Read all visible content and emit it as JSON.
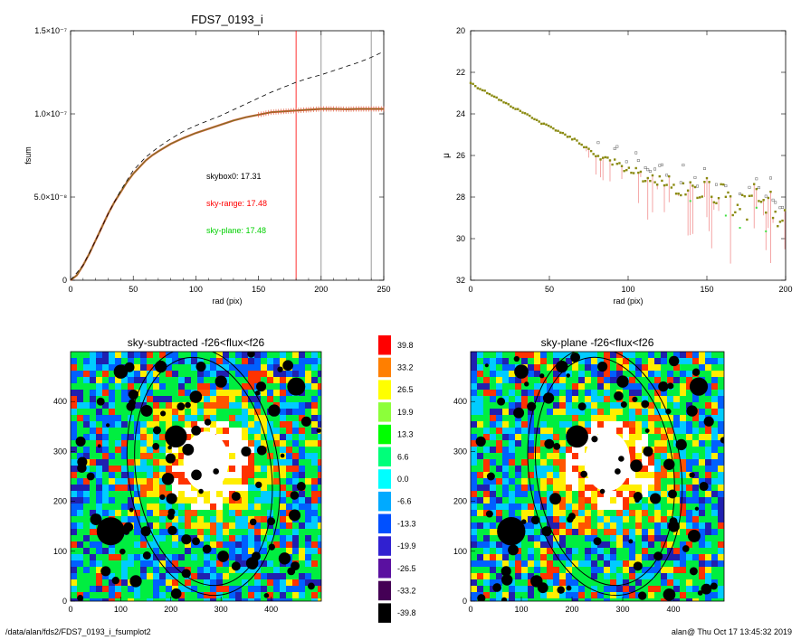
{
  "chart_data": [
    {
      "type": "line",
      "title": "FDS7_0193_i",
      "xlabel": "rad (pix)",
      "ylabel": "fsum",
      "xlim": [
        0,
        250
      ],
      "ylim": [
        0,
        1.5e-07
      ],
      "xticks": [
        "0",
        "50",
        "100",
        "150",
        "200",
        "250"
      ],
      "yticks": [
        "0",
        "5.0×10⁻⁸",
        "1.0×10⁻⁷",
        "1.5×10⁻⁷"
      ],
      "ytick_values": [
        0,
        5e-08,
        1e-07,
        1.5e-07
      ],
      "vlines": [
        180,
        200,
        240
      ],
      "annotations": [
        {
          "text": "skybox0: 17.31",
          "color": "#000000"
        },
        {
          "text": "sky-range: 17.48",
          "color": "#ff0000"
        },
        {
          "text": "sky-plane: 17.48",
          "color": "#00d000"
        }
      ],
      "series": [
        {
          "style": "solid",
          "x": [
            0,
            5,
            10,
            15,
            20,
            25,
            30,
            35,
            40,
            45,
            50,
            55,
            60,
            65,
            70,
            80,
            90,
            100,
            110,
            120,
            130,
            140,
            150,
            160,
            170,
            180,
            190,
            200,
            210,
            220,
            230,
            240,
            250
          ],
          "y": [
            0,
            3e-09,
            9e-09,
            1.6e-08,
            2.4e-08,
            3.2e-08,
            4e-08,
            4.7e-08,
            5.3e-08,
            5.9e-08,
            6.4e-08,
            6.8e-08,
            7.2e-08,
            7.5e-08,
            7.75e-08,
            8.2e-08,
            8.55e-08,
            8.85e-08,
            9.1e-08,
            9.35e-08,
            9.6e-08,
            9.8e-08,
            9.95e-08,
            1.01e-07,
            1.015e-07,
            1.02e-07,
            1.025e-07,
            1.03e-07,
            1.03e-07,
            1.028e-07,
            1.03e-07,
            1.03e-07,
            1.03e-07
          ]
        },
        {
          "style": "dashed",
          "x": [
            0,
            10,
            20,
            30,
            40,
            50,
            60,
            70,
            80,
            90,
            100,
            110,
            120,
            130,
            140,
            150,
            160,
            170,
            180,
            190,
            200,
            210,
            220,
            230,
            240,
            250
          ],
          "y": [
            0,
            9e-09,
            2.4e-08,
            4e-08,
            5.4e-08,
            6.6e-08,
            7.4e-08,
            8e-08,
            8.5e-08,
            8.95e-08,
            9.3e-08,
            9.6e-08,
            9.9e-08,
            1.025e-07,
            1.06e-07,
            1.095e-07,
            1.13e-07,
            1.16e-07,
            1.19e-07,
            1.215e-07,
            1.235e-07,
            1.26e-07,
            1.285e-07,
            1.31e-07,
            1.34e-07,
            1.375e-07
          ]
        }
      ]
    },
    {
      "type": "scatter",
      "title": "",
      "xlabel": "rad (pix)",
      "ylabel": "μ",
      "xlim": [
        0,
        200
      ],
      "ylim": [
        32,
        20
      ],
      "xticks": [
        "0",
        "50",
        "100",
        "150",
        "200"
      ],
      "yticks": [
        "20",
        "22",
        "24",
        "26",
        "28",
        "30",
        "32"
      ],
      "series": [
        {
          "marker": "point",
          "x": [
            0,
            5,
            10,
            15,
            20,
            25,
            30,
            35,
            40,
            45,
            50,
            55,
            60,
            65,
            70,
            75,
            80,
            85,
            90,
            95,
            100,
            105,
            110,
            115,
            120,
            125,
            130,
            135,
            140,
            145,
            150,
            155,
            160,
            165,
            170,
            175,
            180,
            185,
            190,
            195,
            200
          ],
          "y": [
            22.5,
            22.75,
            22.95,
            23.15,
            23.4,
            23.6,
            23.8,
            24.0,
            24.2,
            24.45,
            24.6,
            24.8,
            25.0,
            25.2,
            25.5,
            25.8,
            26.0,
            26.1,
            26.3,
            26.5,
            26.7,
            26.8,
            27.0,
            27.2,
            27.1,
            27.3,
            27.5,
            27.6,
            27.2,
            27.8,
            27.5,
            28.2,
            27.3,
            28.5,
            28.0,
            28.6,
            27.8,
            28.9,
            28.2,
            29.2,
            28.5
          ]
        }
      ]
    },
    {
      "type": "heatmap",
      "title": "sky-subtracted -f26<flux<f26",
      "xlim": [
        0,
        500
      ],
      "ylim": [
        0,
        500
      ],
      "xticks": [
        "0",
        "100",
        "200",
        "300",
        "400"
      ],
      "yticks": [
        "0",
        "100",
        "200",
        "300",
        "400"
      ]
    },
    {
      "type": "heatmap",
      "title": "sky-plane -f26<flux<f26",
      "xlim": [
        0,
        500
      ],
      "ylim": [
        0,
        500
      ],
      "xticks": [
        "0",
        "100",
        "200",
        "300",
        "400"
      ],
      "yticks": [
        "0",
        "100",
        "200",
        "300",
        "400"
      ]
    }
  ],
  "colorbar": {
    "labels": [
      "39.8",
      "33.2",
      "26.5",
      "19.9",
      "13.3",
      "6.6",
      "0.0",
      "-6.6",
      "-13.3",
      "-19.9",
      "-26.5",
      "-33.2",
      "-39.8"
    ],
    "colors": [
      "#ff0000",
      "#ff7f00",
      "#ffff00",
      "#8cff3a",
      "#00ff00",
      "#00ff7a",
      "#00ffff",
      "#00aaff",
      "#0050ff",
      "#3020d0",
      "#5a10a0",
      "#440055",
      "#000000"
    ]
  },
  "footer": {
    "left": "/data/alan/fds2/FDS7_0193_i_fsumplot2",
    "right": "alan@  Thu Oct 17 13:45:32 2019"
  }
}
